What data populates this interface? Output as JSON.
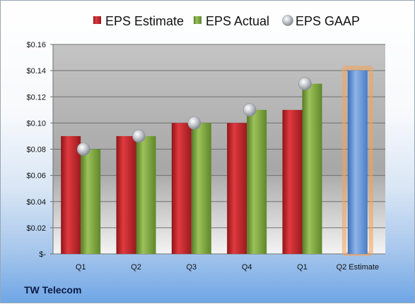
{
  "company": "TW Telecom",
  "chart_data": {
    "type": "bar",
    "categories": [
      "Q1",
      "Q2",
      "Q3",
      "Q4",
      "Q1",
      "Q2 Estimate"
    ],
    "series": [
      {
        "name": "EPS Estimate",
        "values": [
          0.09,
          0.09,
          0.1,
          0.1,
          0.11,
          null
        ],
        "color": "#c0282d"
      },
      {
        "name": "EPS Actual",
        "values": [
          0.08,
          0.09,
          0.1,
          0.11,
          0.13,
          null
        ],
        "color": "#7aa23a"
      },
      {
        "name": "EPS GAAP",
        "type": "scatter",
        "values": [
          0.08,
          0.09,
          0.1,
          0.11,
          0.13,
          null
        ],
        "color": "#b8bcc4"
      }
    ],
    "estimate": {
      "category": "Q2 Estimate",
      "value": 0.14,
      "color": "#5b8fd6",
      "glow": "#f4a259"
    },
    "ylim": [
      0,
      0.16
    ],
    "yticks": [
      "$-",
      "$0.02",
      "$0.04",
      "$0.06",
      "$0.08",
      "$0.10",
      "$0.12",
      "$0.14",
      "$0.16"
    ],
    "grid": true,
    "legend_position": "top"
  }
}
